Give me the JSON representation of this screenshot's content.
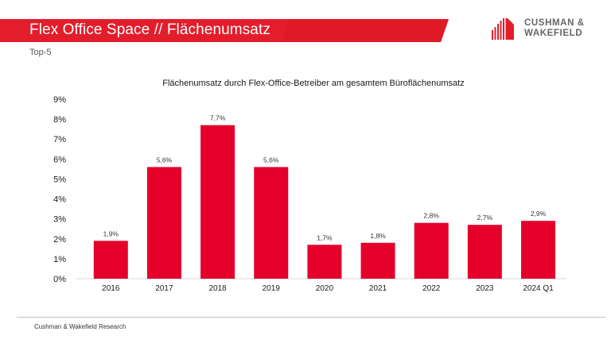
{
  "header": {
    "title": "Flex Office Space // Flächenumsatz",
    "subtitle": "Top-5",
    "brand_color": "#e31d2b",
    "logo": {
      "icon": "building-logo-icon",
      "line1": "CUSHMAN &",
      "line2": "WAKEFIELD"
    }
  },
  "footer": {
    "source": "Cushman & Wakefield Research"
  },
  "chart_data": {
    "type": "bar",
    "title": "Flächenumsatz durch Flex-Office-Betreiber am gesamtem Büroflächenumsatz",
    "xlabel": "",
    "ylabel": "",
    "categories": [
      "2016",
      "2017",
      "2018",
      "2019",
      "2020",
      "2021",
      "2022",
      "2023",
      "2024 Q1"
    ],
    "values": [
      1.9,
      5.6,
      7.7,
      5.6,
      1.7,
      1.8,
      2.8,
      2.7,
      2.9
    ],
    "data_labels": [
      "1,9%",
      "5,6%",
      "7,7%",
      "5,6%",
      "1,7%",
      "1,8%",
      "2,8%",
      "2,7%",
      "2,9%"
    ],
    "ylim": [
      0,
      9
    ],
    "yticks": [
      "0%",
      "1%",
      "2%",
      "3%",
      "4%",
      "5%",
      "6%",
      "7%",
      "8%",
      "9%"
    ],
    "grid": false,
    "legend": "none",
    "bar_color": "#e4002b"
  }
}
